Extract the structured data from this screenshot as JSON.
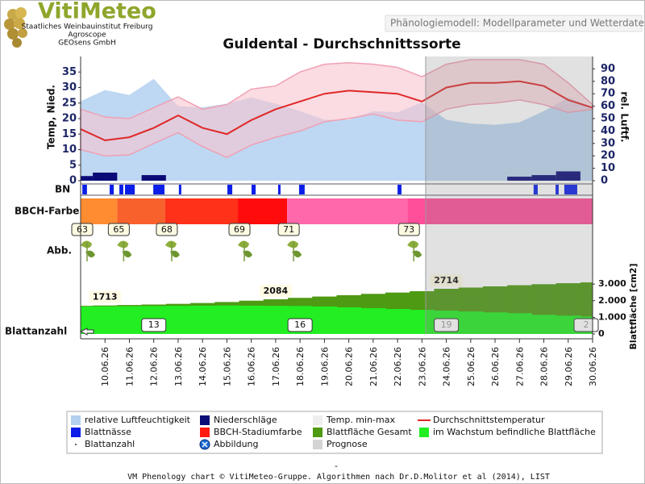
{
  "header": {
    "logo": "VitiMeteo",
    "org_lines": [
      "Staatliches Weinbauinstitut Freiburg",
      "Agroscope",
      "GEOsens GmbH"
    ],
    "subtitle": "Phänologiemodell: Modellparameter und Wetterdaten"
  },
  "chart_data": [
    {
      "type": "line",
      "title": "Guldental - Durchschnittssorte",
      "y_label": "Temp, Nied.",
      "y2_label": "rel. Luftf.",
      "categories": [
        null,
        "10.06.26",
        "11.06.26",
        "12.06.26",
        "13.06.26",
        "14.06.26",
        "15.06.26",
        "16.06.26",
        "17.06.26",
        "18.06.26",
        "19.06.26",
        "20.06.26",
        "21.06.26",
        "22.06.26",
        "23.06.26",
        "24.06.26",
        "25.06.26",
        "26.06.26",
        "27.06.26",
        "28.06.26",
        "29.06.26",
        "30.06.26"
      ],
      "ylim": [
        0,
        40
      ],
      "yticks": [
        0,
        5,
        10,
        15,
        20,
        25,
        30,
        35
      ],
      "y2lim": [
        0,
        100
      ],
      "y2ticks": [
        0,
        10,
        20,
        30,
        40,
        50,
        60,
        70,
        80,
        90
      ],
      "series": [
        {
          "name": "relative Luftfeuchtigkeit",
          "kind": "area",
          "axis": "y2",
          "color": "#b3d0f0",
          "values": [
            64,
            73,
            69,
            82,
            60,
            59,
            62,
            67,
            62,
            56,
            49,
            49,
            56,
            55,
            63,
            49,
            46,
            45,
            47,
            56,
            67,
            59
          ]
        },
        {
          "name": "Temp. min-max",
          "kind": "band",
          "color": "#f6c4cf",
          "high": [
            23,
            20.5,
            20,
            23.5,
            27,
            23,
            24.5,
            29.5,
            30.5,
            35,
            37.5,
            38,
            37.5,
            36.5,
            33.5,
            37.5,
            39,
            39,
            39,
            37.5,
            31.5,
            24.5
          ],
          "low": [
            10,
            8,
            8.3,
            12,
            15.5,
            11,
            7.5,
            11.5,
            14,
            16,
            19,
            20,
            21.5,
            19.5,
            19,
            23,
            24.5,
            25,
            26,
            24.5,
            22,
            23
          ]
        },
        {
          "name": "Niederschläge",
          "kind": "bar",
          "color": "#0b0b78",
          "values": [
            1.5,
            2.6,
            0,
            1.8,
            0,
            0,
            0,
            0,
            0,
            0,
            0,
            0,
            0,
            0,
            0,
            0,
            0,
            0,
            1.3,
            1.8,
            3.0,
            0
          ]
        },
        {
          "name": "Durchschnittstemperatur",
          "kind": "line",
          "color": "#e02828",
          "values": [
            16.6,
            13,
            14,
            17,
            21,
            17,
            15,
            19.5,
            23,
            25.5,
            28,
            29,
            28.5,
            28,
            25.5,
            30,
            31.5,
            31.5,
            32,
            30.5,
            26,
            23.5
          ]
        }
      ],
      "forecast": {
        "name": "Prognose",
        "color": "#d4d4d4"
      }
    },
    {
      "type": "strip",
      "y_label": "BN",
      "name": "Blattnässe",
      "color": "#0a1ee8",
      "periods": [
        [
          0.07,
          0.26
        ],
        [
          1.19,
          1.36
        ],
        [
          1.59,
          1.75
        ],
        [
          1.82,
          2.22
        ],
        [
          2.98,
          3.44
        ],
        [
          4.03,
          4.13
        ],
        [
          6.02,
          6.22
        ],
        [
          7.01,
          7.18
        ],
        [
          8.1,
          8.2
        ],
        [
          8.96,
          9.19
        ],
        [
          13.0,
          13.16
        ],
        [
          18.58,
          18.75
        ],
        [
          19.48,
          19.61
        ],
        [
          19.84,
          20.37
        ]
      ]
    },
    {
      "type": "stages",
      "y_label": "BBCH-Farbe",
      "name": "BBCH-Stadiumfarbe",
      "stages": [
        63,
        65,
        68,
        69,
        71,
        73
      ],
      "starts": [
        0,
        1.5,
        3.47,
        6.45,
        8.47,
        13.4
      ],
      "colors": [
        "#ff8c30",
        "#f8602c",
        "#ff3118",
        "#ff0b0b",
        "#ff68aa",
        "#ff4e9a"
      ]
    },
    {
      "type": "images",
      "y_label": "Abb.",
      "name": "Abbildung"
    },
    {
      "type": "area",
      "y_label": "Blattfläche [cm2]",
      "ylim": [
        0,
        3200
      ],
      "yticks": [
        0,
        {
          "value": 1000,
          "label": "1.000"
        },
        {
          "value": 2000,
          "label": "2.000"
        },
        {
          "value": 3000,
          "label": "3.000"
        }
      ],
      "series": [
        {
          "name": "Blattfläche Gesamt",
          "color": "#4e9a12",
          "values": [
            1690,
            1713,
            1740,
            1770,
            1810,
            1860,
            1920,
            2000,
            2084,
            2170,
            2250,
            2330,
            2410,
            2490,
            2570,
            2714,
            2790,
            2860,
            2930,
            2990,
            3050,
            3100
          ]
        },
        {
          "name": "im Wachstum befindliche Blattfläche",
          "color": "#22ee22",
          "values": [
            1650,
            1660,
            1670,
            1680,
            1690,
            1700,
            1710,
            1700,
            1690,
            1680,
            1650,
            1600,
            1550,
            1500,
            1450,
            1400,
            1350,
            1300,
            1250,
            1150,
            1100,
            1050
          ]
        }
      ],
      "annotations": [
        {
          "x": "10.06.26",
          "value": 1713
        },
        {
          "x": "17.06.26",
          "value": 2084
        },
        {
          "x": "24.06.26",
          "value": 2714
        }
      ],
      "leaf_count": {
        "name": "Blattanzahl",
        "x": [
          "12.06.26",
          "18.06.26",
          "24.06.26",
          "30.06.26"
        ],
        "labels": [
          "13",
          "16",
          "19",
          "2"
        ]
      }
    }
  ],
  "footer": {
    "dash": "-",
    "text": "VM Phenology chart © VitiMeteo-Gruppe. Algorithmen nach Dr.D.Molitor et al (2014), LIST"
  }
}
